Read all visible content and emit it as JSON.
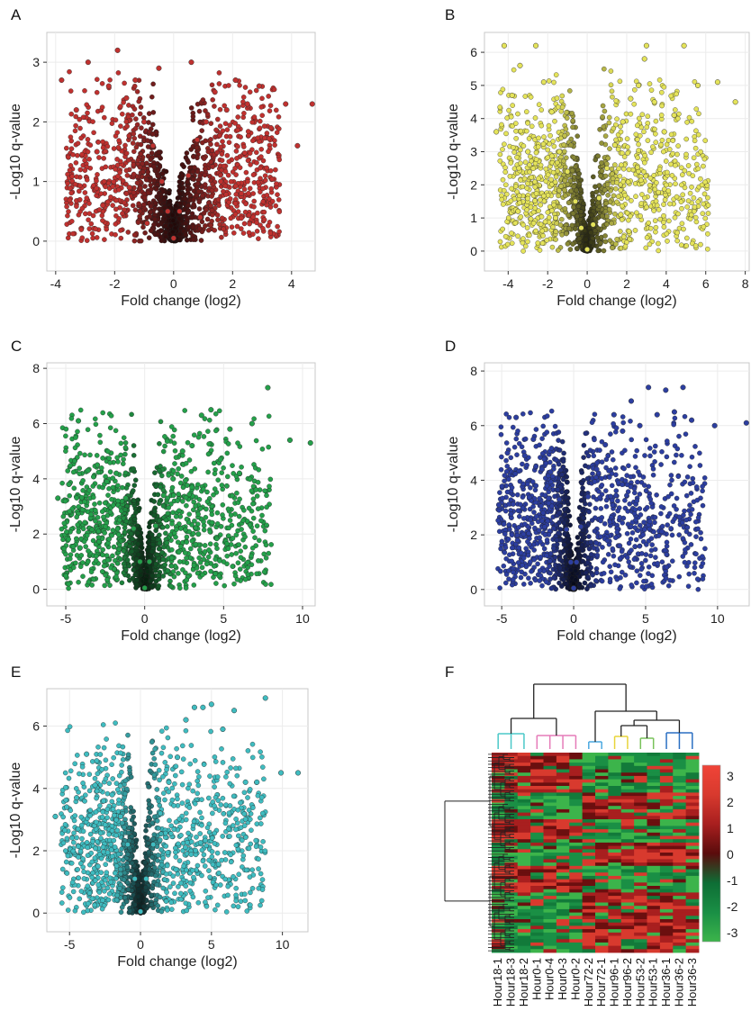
{
  "figure": {
    "panels": [
      "A",
      "B",
      "C",
      "D",
      "E",
      "F"
    ]
  },
  "chart_data": [
    {
      "panel": "A",
      "type": "scatter",
      "xlabel": "Fold change (log2)",
      "ylabel": "-Log10 q-value",
      "xlim": [
        -4.3,
        4.8
      ],
      "ylim": [
        -0.5,
        3.5
      ],
      "xticks": [
        -4,
        -2,
        0,
        2,
        4
      ],
      "yticks": [
        0,
        1,
        2,
        3
      ],
      "grid": true,
      "point_color": "#c0312f",
      "series": [
        {
          "x": [
            -3.8,
            -3.3,
            -2.9,
            -2.6,
            -2.2,
            -1.9,
            -1.6,
            -1.3,
            -1.0,
            -0.7,
            -0.4,
            -0.2,
            0.0,
            0.2,
            0.5,
            0.8,
            1.1,
            1.4,
            1.8,
            2.1,
            2.5,
            2.9,
            3.3,
            3.8,
            4.2,
            4.7,
            -1.5,
            1.6,
            -0.5,
            0.6,
            -2.4,
            2.3,
            -0.9,
            0.9
          ],
          "y": [
            2.7,
            2.2,
            3.0,
            1.5,
            2.6,
            3.2,
            2.4,
            2.7,
            2.0,
            1.6,
            1.0,
            0.5,
            0.05,
            0.5,
            1.1,
            1.7,
            2.0,
            2.5,
            2.2,
            2.7,
            2.3,
            2.6,
            1.9,
            2.3,
            1.6,
            2.3,
            0.9,
            1.0,
            2.9,
            3.0,
            0.6,
            0.8,
            0.3,
            0.4
          ]
        }
      ]
    },
    {
      "panel": "B",
      "type": "scatter",
      "xlabel": "Fold change (log2)",
      "ylabel": "-Log10 q-value",
      "xlim": [
        -5.2,
        8.2
      ],
      "ylim": [
        -0.6,
        6.6
      ],
      "xticks": [
        -4,
        -2,
        0,
        2,
        4,
        6,
        8
      ],
      "yticks": [
        0,
        1,
        2,
        3,
        4,
        5,
        6
      ],
      "grid": true,
      "point_color": "#e4e35a",
      "series": [
        {
          "x": [
            -4.6,
            -4.2,
            -3.8,
            -3.4,
            -3.0,
            -2.6,
            -2.2,
            -1.8,
            -1.4,
            -1.0,
            -0.6,
            -0.3,
            0.0,
            0.3,
            0.6,
            1.0,
            1.4,
            1.8,
            2.2,
            2.6,
            3.0,
            3.4,
            3.9,
            4.4,
            4.9,
            5.6,
            6.6,
            7.5,
            -3.5,
            2.9,
            -1.6,
            1.7
          ],
          "y": [
            3.6,
            6.2,
            4.7,
            5.6,
            3.0,
            6.2,
            5.1,
            4.2,
            3.0,
            2.4,
            1.5,
            0.7,
            0.05,
            0.8,
            1.6,
            2.5,
            3.2,
            3.9,
            4.6,
            5.0,
            6.2,
            4.5,
            3.6,
            4.1,
            6.2,
            5.0,
            5.1,
            4.5,
            1.2,
            5.8,
            1.0,
            1.1
          ]
        }
      ]
    },
    {
      "panel": "C",
      "type": "scatter",
      "xlabel": "Fold change (log2)",
      "ylabel": "-Log10 q-value",
      "xlim": [
        -6.2,
        10.8
      ],
      "ylim": [
        -0.6,
        8.2
      ],
      "xticks": [
        -5,
        0,
        5,
        10
      ],
      "yticks": [
        0,
        2,
        4,
        6,
        8
      ],
      "grid": true,
      "point_color": "#24a04a",
      "series": [
        {
          "x": [
            -5.5,
            -4.8,
            -4.2,
            -3.6,
            -3.0,
            -2.4,
            -1.8,
            -1.2,
            -0.7,
            -0.3,
            0.0,
            0.3,
            0.7,
            1.2,
            1.8,
            2.4,
            3.0,
            3.6,
            4.2,
            4.8,
            5.4,
            6.0,
            6.8,
            7.8,
            9.2,
            10.5,
            -4.1,
            3.4
          ],
          "y": [
            3.3,
            3.8,
            6.1,
            4.3,
            4.5,
            3.9,
            4.2,
            3.3,
            2.2,
            1.0,
            0.05,
            1.0,
            2.3,
            3.4,
            4.0,
            5.0,
            5.2,
            6.3,
            6.5,
            4.7,
            5.8,
            4.2,
            6.0,
            7.3,
            5.4,
            5.3,
            1.5,
            2.0
          ]
        }
      ]
    },
    {
      "panel": "D",
      "type": "scatter",
      "xlabel": "Fold change (log2)",
      "ylabel": "-Log10 q-value",
      "xlim": [
        -6.2,
        12.2
      ],
      "ylim": [
        -0.6,
        8.3
      ],
      "xticks": [
        -5,
        0,
        5,
        10
      ],
      "yticks": [
        0,
        2,
        4,
        6,
        8
      ],
      "grid": true,
      "point_color": "#2c3ea0",
      "series": [
        {
          "x": [
            -5.2,
            -4.6,
            -4.0,
            -3.4,
            -2.8,
            -2.2,
            -1.6,
            -1.0,
            -0.5,
            -0.2,
            0.0,
            0.2,
            0.5,
            1.0,
            1.6,
            2.2,
            2.8,
            3.4,
            4.0,
            4.6,
            5.2,
            5.8,
            6.4,
            7.0,
            7.6,
            8.2,
            9.8,
            12.0,
            -3.9,
            3.2
          ],
          "y": [
            3.1,
            5.0,
            6.3,
            4.9,
            5.5,
            4.4,
            4.3,
            3.3,
            2.2,
            1.0,
            0.05,
            1.0,
            2.3,
            3.4,
            4.4,
            5.3,
            6.4,
            5.8,
            6.9,
            6.0,
            7.4,
            6.4,
            7.3,
            6.5,
            7.4,
            6.2,
            6.0,
            6.1,
            1.8,
            1.6
          ]
        }
      ]
    },
    {
      "panel": "E",
      "type": "scatter",
      "xlabel": "Fold change (log2)",
      "ylabel": "-Log10 q-value",
      "xlim": [
        -6.6,
        11.8
      ],
      "ylim": [
        -0.6,
        7.2
      ],
      "xticks": [
        -5,
        0,
        5,
        10
      ],
      "yticks": [
        0,
        2,
        4,
        6
      ],
      "grid": true,
      "point_color": "#3fbcc0",
      "series": [
        {
          "x": [
            -6.0,
            -5.2,
            -4.5,
            -3.8,
            -3.2,
            -2.6,
            -2.0,
            -1.4,
            -0.9,
            -0.4,
            0.0,
            0.4,
            0.9,
            1.4,
            2.0,
            2.6,
            3.2,
            3.8,
            4.4,
            5.0,
            5.8,
            6.6,
            7.4,
            8.2,
            8.8,
            9.9,
            11.1,
            -3.0,
            2.5
          ],
          "y": [
            3.1,
            3.4,
            3.7,
            5.1,
            4.1,
            3.6,
            3.8,
            3.1,
            2.2,
            1.1,
            0.05,
            1.1,
            2.2,
            3.2,
            4.2,
            5.0,
            6.2,
            6.6,
            6.6,
            6.7,
            5.9,
            6.5,
            4.2,
            4.2,
            6.9,
            4.5,
            4.5,
            1.5,
            1.4
          ]
        }
      ]
    },
    {
      "panel": "F",
      "type": "heatmap",
      "columns": [
        "Hour18-1",
        "Hour18-3",
        "Hour18-2",
        "Hour0-1",
        "Hour0-4",
        "Hour0-3",
        "Hour0-2",
        "Hour72-2",
        "Hour72-1",
        "Hour96-1",
        "Hour96-2",
        "Hour53-2",
        "Hour53-1",
        "Hour36-1",
        "Hour36-2",
        "Hour36-3"
      ],
      "legend_ticks": [
        3,
        2,
        1,
        0,
        -1,
        -2,
        -3
      ],
      "color_scale": [
        "#3cb44b",
        "#1a8f45",
        "#127a3a",
        "#6b0f0f",
        "#a81f1f",
        "#d83a2e",
        "#f04438"
      ],
      "cluster_colors": [
        "#4bc8c8",
        "#e57bb8",
        "#4aa8e0",
        "#e8d43a",
        "#78c25a",
        "#2a6fc2"
      ]
    }
  ]
}
